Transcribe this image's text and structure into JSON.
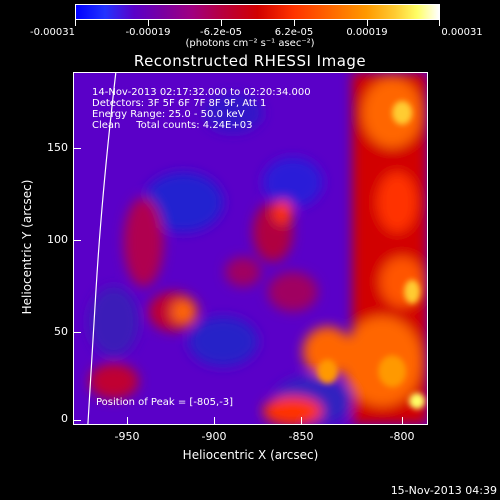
{
  "colorbar": {
    "tick_labels": [
      "-0.00031",
      "-0.00019",
      "-6.2e-05",
      "6.2e-05",
      "0.00019",
      "0.00031"
    ],
    "units": "(photons cm⁻² s⁻¹ asec⁻²)"
  },
  "title": "Reconstructed RHESSI Image",
  "info": {
    "line1": "14-Nov-2013 02:17:32.000 to 02:20:34.000",
    "line2": "Detectors: 3F 5F 6F 7F 8F 9F, Att 1",
    "line3": "Energy Range: 25.0 - 50.0 keV",
    "line4": "Clean     Total counts: 4.24E+03"
  },
  "peak": "Position of Peak = [-805,-3]",
  "axes": {
    "xlabel": "Heliocentric X (arcsec)",
    "ylabel": "Heliocentric Y (arcsec)",
    "xticks": [
      "-950",
      "-900",
      "-850",
      "-800"
    ],
    "yticks": [
      "150",
      "100",
      "50",
      "0"
    ],
    "xrange": [
      -978,
      -787
    ],
    "yrange": [
      -3,
      187
    ]
  },
  "footer": {
    "timestamp": "15-Nov-2013 04:39"
  },
  "colors": {
    "background": "#000000",
    "low": "#5a00c8",
    "high": "#ff9900"
  }
}
